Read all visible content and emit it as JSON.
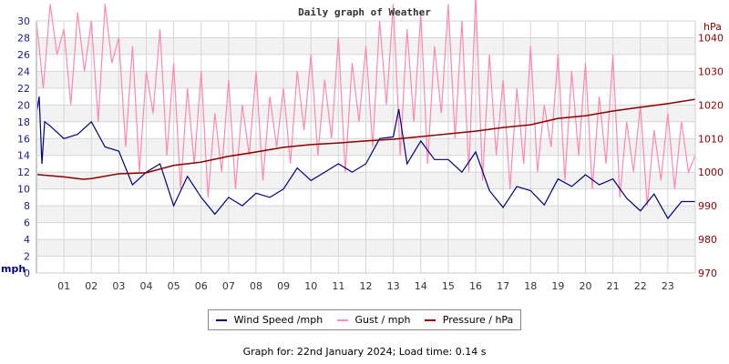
{
  "chart_data": {
    "type": "line",
    "title": "Daily graph of Weather",
    "left_axis": {
      "label": "mph",
      "range": [
        0,
        30
      ],
      "ticks": [
        0,
        2,
        4,
        6,
        8,
        10,
        12,
        14,
        16,
        18,
        20,
        22,
        24,
        26,
        28,
        30
      ],
      "color": "#1a1a8c"
    },
    "right_axis": {
      "label": "hPa",
      "range": [
        970,
        1045
      ],
      "ticks": [
        970,
        980,
        990,
        1000,
        1010,
        1020,
        1030,
        1040
      ],
      "color": "#8b0000"
    },
    "x_axis": {
      "range": [
        0,
        24
      ],
      "tick_labels": [
        "01",
        "02",
        "03",
        "04",
        "05",
        "06",
        "07",
        "08",
        "09",
        "10",
        "11",
        "12",
        "13",
        "14",
        "15",
        "16",
        "17",
        "18",
        "19",
        "20",
        "21",
        "22",
        "23"
      ]
    },
    "grid": true,
    "legend_placement": "bottom",
    "series": [
      {
        "name": "Gust / mph",
        "axis": "left",
        "color": "#ff88ac",
        "points": [
          [
            0,
            30
          ],
          [
            0.25,
            22
          ],
          [
            0.5,
            32
          ],
          [
            0.75,
            26
          ],
          [
            1,
            29
          ],
          [
            1.25,
            20
          ],
          [
            1.5,
            31
          ],
          [
            1.75,
            24
          ],
          [
            2,
            30
          ],
          [
            2.25,
            18
          ],
          [
            2.5,
            32
          ],
          [
            2.75,
            25
          ],
          [
            3,
            28
          ],
          [
            3.25,
            15
          ],
          [
            3.5,
            27
          ],
          [
            3.75,
            12
          ],
          [
            4,
            24
          ],
          [
            4.25,
            19
          ],
          [
            4.5,
            29
          ],
          [
            4.75,
            14
          ],
          [
            5,
            25
          ],
          [
            5.25,
            10
          ],
          [
            5.5,
            22
          ],
          [
            5.75,
            13
          ],
          [
            6,
            24
          ],
          [
            6.25,
            9
          ],
          [
            6.5,
            19
          ],
          [
            6.75,
            12
          ],
          [
            7,
            23
          ],
          [
            7.25,
            10
          ],
          [
            7.5,
            20
          ],
          [
            7.75,
            14
          ],
          [
            8,
            24
          ],
          [
            8.25,
            11
          ],
          [
            8.5,
            21
          ],
          [
            8.75,
            15
          ],
          [
            9,
            22
          ],
          [
            9.25,
            13
          ],
          [
            9.5,
            24
          ],
          [
            9.75,
            17
          ],
          [
            10,
            26
          ],
          [
            10.25,
            14
          ],
          [
            10.5,
            23
          ],
          [
            10.75,
            16
          ],
          [
            11,
            28
          ],
          [
            11.25,
            12
          ],
          [
            11.5,
            25
          ],
          [
            11.75,
            18
          ],
          [
            12,
            27
          ],
          [
            12.25,
            15
          ],
          [
            12.5,
            30
          ],
          [
            12.75,
            20
          ],
          [
            13,
            32
          ],
          [
            13.25,
            14
          ],
          [
            13.5,
            29
          ],
          [
            13.75,
            18
          ],
          [
            14,
            31
          ],
          [
            14.25,
            13
          ],
          [
            14.5,
            27
          ],
          [
            14.75,
            19
          ],
          [
            15,
            32
          ],
          [
            15.25,
            16
          ],
          [
            15.5,
            30
          ],
          [
            15.75,
            12
          ],
          [
            16,
            33
          ],
          [
            16.25,
            11
          ],
          [
            16.5,
            26
          ],
          [
            16.75,
            14
          ],
          [
            17,
            23
          ],
          [
            17.25,
            10
          ],
          [
            17.5,
            22
          ],
          [
            17.75,
            13
          ],
          [
            18,
            27
          ],
          [
            18.25,
            12
          ],
          [
            18.5,
            20
          ],
          [
            18.75,
            15
          ],
          [
            19,
            26
          ],
          [
            19.25,
            11
          ],
          [
            19.5,
            24
          ],
          [
            19.75,
            14
          ],
          [
            20,
            25
          ],
          [
            20.25,
            10
          ],
          [
            20.5,
            21
          ],
          [
            20.75,
            13
          ],
          [
            21,
            26
          ],
          [
            21.25,
            9
          ],
          [
            21.5,
            18
          ],
          [
            21.75,
            12
          ],
          [
            22,
            20
          ],
          [
            22.25,
            8
          ],
          [
            22.5,
            17
          ],
          [
            22.75,
            11
          ],
          [
            23,
            19
          ],
          [
            23.25,
            10
          ],
          [
            23.5,
            18
          ],
          [
            23.75,
            12
          ],
          [
            24,
            14
          ]
        ]
      },
      {
        "name": "Wind Speed /mph",
        "axis": "left",
        "color": "#000080",
        "points": [
          [
            0,
            19
          ],
          [
            0.1,
            21
          ],
          [
            0.2,
            13
          ],
          [
            0.3,
            18
          ],
          [
            0.5,
            17.5
          ],
          [
            1,
            16
          ],
          [
            1.5,
            16.5
          ],
          [
            2,
            18
          ],
          [
            2.5,
            15
          ],
          [
            3,
            14.5
          ],
          [
            3.5,
            10.5
          ],
          [
            4,
            12
          ],
          [
            4.5,
            13
          ],
          [
            5,
            8
          ],
          [
            5.5,
            11.5
          ],
          [
            6,
            9
          ],
          [
            6.5,
            7
          ],
          [
            7,
            9
          ],
          [
            7.5,
            8
          ],
          [
            8,
            9.5
          ],
          [
            8.5,
            9
          ],
          [
            9,
            10
          ],
          [
            9.5,
            12.5
          ],
          [
            10,
            11
          ],
          [
            10.5,
            12
          ],
          [
            11,
            13
          ],
          [
            11.5,
            12
          ],
          [
            12,
            13
          ],
          [
            12.5,
            16
          ],
          [
            13,
            16.2
          ],
          [
            13.2,
            19.5
          ],
          [
            13.5,
            13
          ],
          [
            14,
            15.7
          ],
          [
            14.5,
            13.5
          ],
          [
            15,
            13.5
          ],
          [
            15.5,
            12
          ],
          [
            16,
            14.4
          ],
          [
            16.5,
            9.8
          ],
          [
            17,
            7.8
          ],
          [
            17.5,
            10.3
          ],
          [
            18,
            9.8
          ],
          [
            18.5,
            8.1
          ],
          [
            19,
            11.2
          ],
          [
            19.5,
            10.3
          ],
          [
            20,
            11.7
          ],
          [
            20.5,
            10.5
          ],
          [
            21,
            11.2
          ],
          [
            21.5,
            8.9
          ],
          [
            22,
            7.4
          ],
          [
            22.5,
            9.4
          ],
          [
            23,
            6.5
          ],
          [
            23.5,
            8.5
          ],
          [
            24,
            8.5
          ]
        ]
      },
      {
        "name": "Pressure / hPa",
        "axis": "right",
        "color": "#8b0000",
        "points": [
          [
            0,
            999.3
          ],
          [
            1,
            998.6
          ],
          [
            1.7,
            997.9
          ],
          [
            2,
            998.1
          ],
          [
            3,
            999.5
          ],
          [
            4,
            999.8
          ],
          [
            5,
            1002
          ],
          [
            6,
            1003
          ],
          [
            7,
            1004.7
          ],
          [
            8,
            1006
          ],
          [
            9,
            1007.4
          ],
          [
            10,
            1008.2
          ],
          [
            11,
            1008.7
          ],
          [
            12,
            1009.3
          ],
          [
            13,
            1009.8
          ],
          [
            14,
            1010.6
          ],
          [
            15,
            1011.4
          ],
          [
            16,
            1012.2
          ],
          [
            17,
            1013.3
          ],
          [
            18,
            1014.1
          ],
          [
            19,
            1016
          ],
          [
            20,
            1016.8
          ],
          [
            21,
            1018.2
          ],
          [
            22,
            1019.3
          ],
          [
            23,
            1020.4
          ],
          [
            24,
            1021.7
          ]
        ]
      }
    ]
  },
  "legend": [
    {
      "label": "Wind Speed /mph",
      "color": "#000080"
    },
    {
      "label": "Gust / mph",
      "color": "#ff88ac"
    },
    {
      "label": "Pressure / hPa",
      "color": "#8b0000"
    }
  ],
  "footer": "Graph for: 22nd January 2024; Load time: 0.14 s"
}
